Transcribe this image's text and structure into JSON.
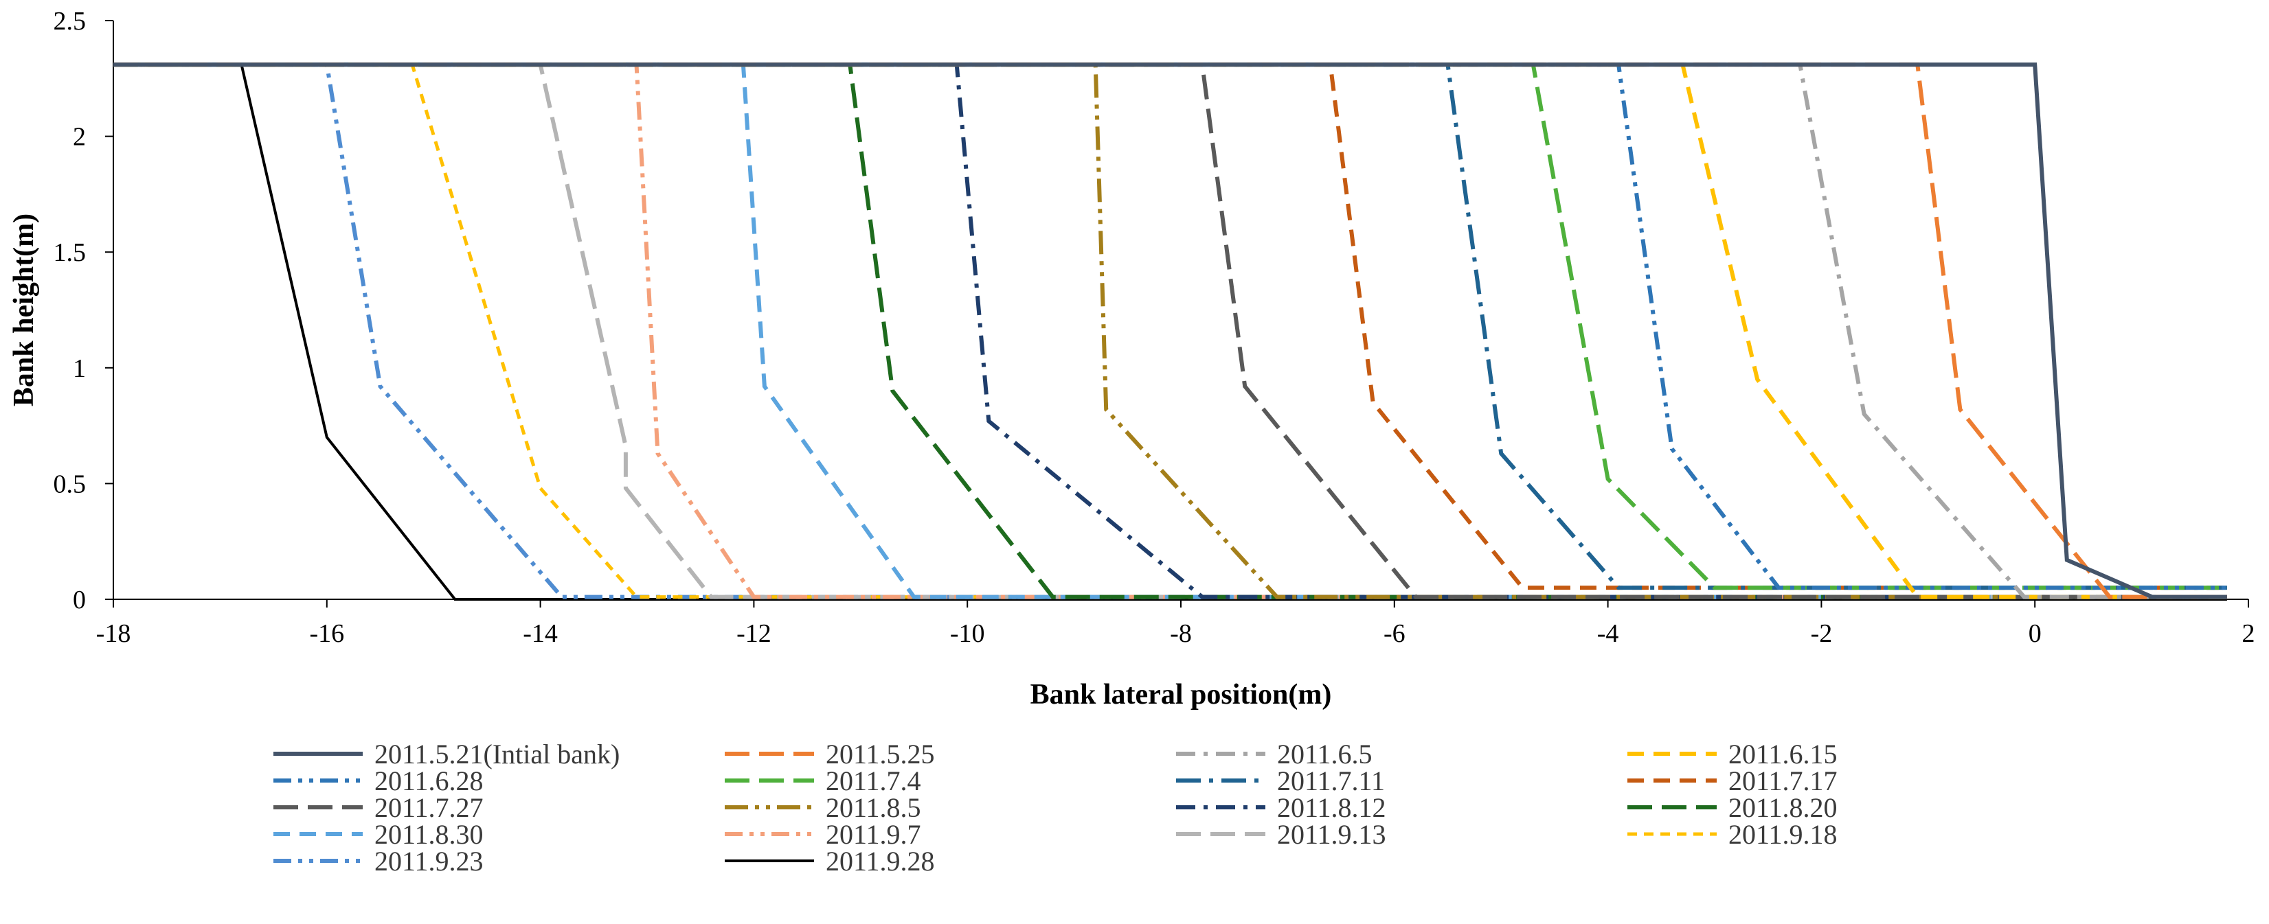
{
  "chart_data": {
    "type": "line",
    "title": "",
    "xlabel": "Bank lateral position(m)",
    "ylabel": "Bank height(m)",
    "xlim": [
      -18,
      2
    ],
    "ylim": [
      0,
      2.5
    ],
    "xticks": [
      -18,
      -16,
      -14,
      -12,
      -10,
      -8,
      -6,
      -4,
      -2,
      0,
      2
    ],
    "yticks": [
      0,
      0.5,
      1,
      1.5,
      2,
      2.5
    ],
    "grid": false,
    "legend_position": "bottom",
    "series": [
      {
        "name": "2011.5.21(Intial bank)",
        "color": "#44546A",
        "dash": "solid",
        "width": 6,
        "x": [
          -18,
          0.0,
          0.3,
          0.6,
          1.1,
          1.8
        ],
        "y": [
          2.31,
          2.31,
          0.17,
          0.11,
          0.01,
          0.01
        ]
      },
      {
        "name": "2011.5.25",
        "color": "#ED7D31",
        "dash": "long",
        "width": 6,
        "x": [
          -18,
          -1.1,
          -0.7,
          0.7,
          1.8
        ],
        "y": [
          2.31,
          2.31,
          0.82,
          0.01,
          0.01
        ]
      },
      {
        "name": "2011.6.5",
        "color": "#A5A5A5",
        "dash": "dashdot",
        "width": 6,
        "x": [
          -18,
          -2.2,
          -1.6,
          -0.1,
          1.8
        ],
        "y": [
          2.31,
          2.31,
          0.8,
          0.01,
          0.01
        ]
      },
      {
        "name": "2011.6.15",
        "color": "#FFC000",
        "dash": "dash",
        "width": 6,
        "x": [
          -18,
          -3.3,
          -2.6,
          -1.1,
          1.8
        ],
        "y": [
          2.31,
          2.31,
          0.95,
          0.01,
          0.01
        ]
      },
      {
        "name": "2011.6.28",
        "color": "#2E75B6",
        "dash": "dashdotdot",
        "width": 6,
        "x": [
          -18,
          -3.9,
          -3.4,
          -2.4,
          1.8
        ],
        "y": [
          2.31,
          2.31,
          0.65,
          0.05,
          0.05
        ]
      },
      {
        "name": "2011.7.4",
        "color": "#4EB03B",
        "dash": "long",
        "width": 6,
        "x": [
          -18,
          -4.7,
          -4.0,
          -3.0,
          1.8
        ],
        "y": [
          2.31,
          2.31,
          0.52,
          0.05,
          0.05
        ]
      },
      {
        "name": "2011.7.11",
        "color": "#1F6391",
        "dash": "longdot",
        "width": 6,
        "x": [
          -18,
          -5.5,
          -5.0,
          -3.9,
          1.8
        ],
        "y": [
          2.31,
          2.31,
          0.63,
          0.05,
          0.05
        ]
      },
      {
        "name": "2011.7.17",
        "color": "#C55A11",
        "dash": "dash",
        "width": 6,
        "x": [
          -18,
          -6.6,
          -6.2,
          -4.8,
          1.8
        ],
        "y": [
          2.31,
          2.31,
          0.85,
          0.05,
          0.05
        ]
      },
      {
        "name": "2011.7.27",
        "color": "#595959",
        "dash": "long",
        "width": 6,
        "x": [
          -18,
          -7.8,
          -7.4,
          -5.8,
          1.8
        ],
        "y": [
          2.31,
          2.31,
          0.92,
          0.01,
          0.01
        ]
      },
      {
        "name": "2011.8.5",
        "color": "#A47F1A",
        "dash": "longdotdot",
        "width": 6,
        "x": [
          -18,
          -8.8,
          -8.7,
          -7.1,
          1.8
        ],
        "y": [
          2.31,
          2.31,
          0.82,
          0.01,
          0.01
        ]
      },
      {
        "name": "2011.8.12",
        "color": "#1F3D6B",
        "dash": "dashdot",
        "width": 6,
        "x": [
          -18,
          -10.1,
          -9.8,
          -7.8,
          1.8
        ],
        "y": [
          2.31,
          2.31,
          0.77,
          0.01,
          0.01
        ]
      },
      {
        "name": "2011.8.20",
        "color": "#1E6B1E",
        "dash": "long",
        "width": 6,
        "x": [
          -18,
          -11.1,
          -10.7,
          -9.2,
          1.8
        ],
        "y": [
          2.31,
          2.31,
          0.9,
          0.01,
          0.01
        ]
      },
      {
        "name": "2011.8.30",
        "color": "#5BA4DE",
        "dash": "dash",
        "width": 6,
        "x": [
          -18,
          -12.1,
          -11.9,
          -10.5,
          1.8
        ],
        "y": [
          2.31,
          2.31,
          0.92,
          0.01,
          0.01
        ]
      },
      {
        "name": "2011.9.7",
        "color": "#F4A07A",
        "dash": "dashdotdot",
        "width": 6,
        "x": [
          -18,
          -13.1,
          -12.9,
          -12.0,
          1.8
        ],
        "y": [
          2.31,
          2.31,
          0.63,
          0.01,
          0.01
        ]
      },
      {
        "name": "2011.9.13",
        "color": "#B4B4B4",
        "dash": "long",
        "width": 6,
        "x": [
          -18,
          -14.0,
          -13.2,
          -13.2,
          -12.4,
          1.8
        ],
        "y": [
          2.31,
          2.31,
          0.66,
          0.48,
          0.01,
          0.01
        ]
      },
      {
        "name": "2011.9.18",
        "color": "#FFC000",
        "dash": "short",
        "width": 5,
        "x": [
          -18,
          -15.2,
          -14.0,
          -13.1,
          1.8
        ],
        "y": [
          2.31,
          2.31,
          0.48,
          0.01,
          0.01
        ]
      },
      {
        "name": "2011.9.23",
        "color": "#4F8CD1",
        "dash": "dashdotdot",
        "width": 6,
        "x": [
          -18,
          -16.0,
          -15.5,
          -13.8,
          1.8
        ],
        "y": [
          2.31,
          2.31,
          0.92,
          0.01,
          0.01
        ]
      },
      {
        "name": "2011.9.28",
        "color": "#000000",
        "dash": "solid",
        "width": 4,
        "x": [
          -18,
          -16.8,
          -16.0,
          -14.8,
          1.8
        ],
        "y": [
          2.31,
          2.31,
          0.7,
          0.0,
          0.0
        ]
      }
    ]
  }
}
